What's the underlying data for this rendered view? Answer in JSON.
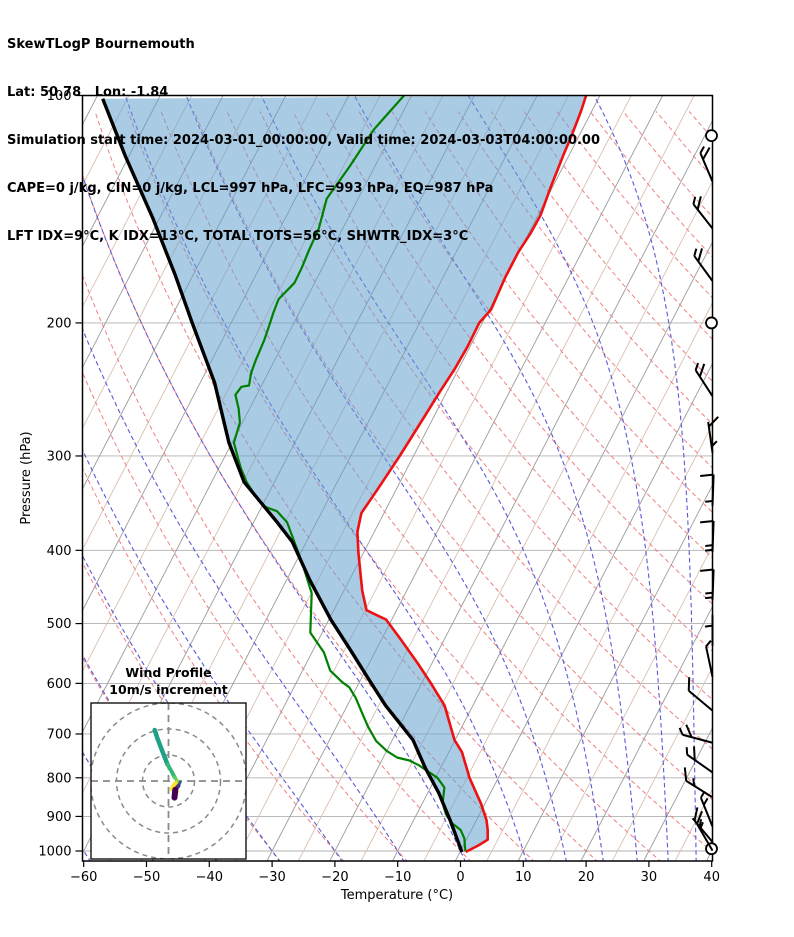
{
  "header": {
    "title": "SkewTLogP Bournemouth",
    "location": "Lat: 50.78   Lon: -1.84",
    "times": "Simulation start time: 2024-03-01_00:00:00, Valid time: 2024-03-03T04:00:00.00",
    "indices_line1": "CAPE=0 j/kg, CIN=0 j/kg, LCL=997 hPa, LFC=993 hPa, EQ=987 hPa",
    "indices_line2": "LFT IDX=9°C, K IDX=13°C, TOTAL TOTS=56°C, SHWTR_IDX=3°C"
  },
  "axes": {
    "x_label": "Temperature (°C)",
    "y_label": "Pressure (hPa)",
    "x_ticks": [
      -60,
      -50,
      -40,
      -30,
      -20,
      -10,
      0,
      10,
      20,
      30,
      40
    ],
    "y_ticks": [
      100,
      200,
      300,
      400,
      500,
      600,
      700,
      800,
      900,
      1000
    ],
    "x_range": [
      -60,
      40
    ],
    "pressure_range": [
      100,
      1030
    ]
  },
  "inset": {
    "title_line1": "Wind Profile",
    "title_line2": "10m/s increment",
    "rings_ms": [
      10,
      20,
      30
    ]
  },
  "colors": {
    "temperature": "#ee1111",
    "dewpoint": "#008000",
    "parcel": "#000000",
    "cape_fill": "rgba(100,160,205,0.55)",
    "isotherm_major": "#9b9b9b",
    "isotherm_minor": "#d9c0b2",
    "pressure_grid": "#b0b0b0",
    "dry_adiabat": "#ef8080",
    "moist_adiabat": "#5a5ad6",
    "barb": "#000000",
    "hodo_grid": "#8a8a8a"
  },
  "chart_data": {
    "type": "skewt_logp",
    "title": "SkewTLogP Bournemouth",
    "grid": {
      "isotherms_c": {
        "min": -160,
        "max": 40,
        "step": 5,
        "major_every": 10
      },
      "dry_adiabats_theta_c": {
        "min": -60,
        "max": 210,
        "step": 10
      },
      "moist_adiabat_starts_c": [
        -120,
        -110,
        -100,
        -90,
        -80,
        -70,
        -60,
        -50,
        -40,
        -30,
        -20,
        -10,
        0,
        10,
        16.5,
        22.5,
        28,
        33,
        37.5
      ]
    },
    "temperature_profile_pT": [
      [
        1003,
        0.9
      ],
      [
        983,
        2.4
      ],
      [
        966,
        3.4
      ],
      [
        938,
        2.6
      ],
      [
        910,
        1.6
      ],
      [
        866,
        -0.6
      ],
      [
        800,
        -4.6
      ],
      [
        740,
        -7.9
      ],
      [
        713,
        -10.1
      ],
      [
        642,
        -14.5
      ],
      [
        600,
        -18.5
      ],
      [
        564,
        -22.3
      ],
      [
        525,
        -26.9
      ],
      [
        494,
        -30.9
      ],
      [
        480,
        -34.8
      ],
      [
        452,
        -37.1
      ],
      [
        403,
        -40.8
      ],
      [
        378,
        -42.7
      ],
      [
        357,
        -43.6
      ],
      [
        333,
        -43.0
      ],
      [
        300,
        -42.2
      ],
      [
        266,
        -41.5
      ],
      [
        247,
        -41.1
      ],
      [
        230,
        -40.6
      ],
      [
        215,
        -40.4
      ],
      [
        200,
        -40.5
      ],
      [
        192,
        -39.7
      ],
      [
        174,
        -40.1
      ],
      [
        161,
        -40.1
      ],
      [
        152,
        -39.7
      ],
      [
        144,
        -39.6
      ],
      [
        132,
        -40.3
      ],
      [
        120,
        -40.9
      ],
      [
        113,
        -41.2
      ],
      [
        105,
        -41.7
      ],
      [
        100,
        -42.2
      ]
    ],
    "dewpoint_profile_pT": [
      [
        1001,
        0.8
      ],
      [
        985,
        0.3
      ],
      [
        963,
        -0.4
      ],
      [
        938,
        -1.7
      ],
      [
        917,
        -3.8
      ],
      [
        893,
        -5.4
      ],
      [
        864,
        -6.8
      ],
      [
        824,
        -7.8
      ],
      [
        800,
        -9.7
      ],
      [
        770,
        -13.7
      ],
      [
        759,
        -15.6
      ],
      [
        752,
        -17.8
      ],
      [
        737,
        -20.0
      ],
      [
        715,
        -22.5
      ],
      [
        684,
        -25.0
      ],
      [
        653,
        -27.3
      ],
      [
        627,
        -29.3
      ],
      [
        607,
        -31.2
      ],
      [
        598,
        -32.7
      ],
      [
        577,
        -35.6
      ],
      [
        546,
        -38.1
      ],
      [
        514,
        -41.9
      ],
      [
        456,
        -44.9
      ],
      [
        415,
        -49.0
      ],
      [
        367,
        -54.7
      ],
      [
        355,
        -57.2
      ],
      [
        350,
        -59.6
      ],
      [
        336,
        -62.4
      ],
      [
        325,
        -64.4
      ],
      [
        312,
        -66.4
      ],
      [
        304,
        -67.5
      ],
      [
        288,
        -69.7
      ],
      [
        271,
        -70.4
      ],
      [
        260,
        -71.7
      ],
      [
        249,
        -73.4
      ],
      [
        243,
        -73.1
      ],
      [
        242,
        -72.0
      ],
      [
        233,
        -72.7
      ],
      [
        224,
        -73.0
      ],
      [
        211,
        -73.3
      ],
      [
        202,
        -73.7
      ],
      [
        194,
        -74.1
      ],
      [
        186,
        -74.4
      ],
      [
        177,
        -73.2
      ],
      [
        169,
        -73.3
      ],
      [
        160,
        -73.6
      ],
      [
        150,
        -73.8
      ],
      [
        137,
        -75.0
      ],
      [
        124,
        -74.0
      ],
      [
        111,
        -73.2
      ],
      [
        100,
        -71.2
      ]
    ],
    "parcel_profile_pT": [
      [
        1003,
        0.3
      ],
      [
        910,
        -4.2
      ],
      [
        837,
        -8.3
      ],
      [
        777,
        -12.4
      ],
      [
        713,
        -16.7
      ],
      [
        642,
        -23.9
      ],
      [
        589,
        -29.1
      ],
      [
        539,
        -34.4
      ],
      [
        494,
        -39.7
      ],
      [
        438,
        -46.3
      ],
      [
        390,
        -52.2
      ],
      [
        367,
        -56.3
      ],
      [
        325,
        -64.8
      ],
      [
        288,
        -70.5
      ],
      [
        240,
        -77.7
      ],
      [
        200,
        -86.2
      ],
      [
        173,
        -92.8
      ],
      [
        145,
        -101.2
      ],
      [
        120,
        -110.7
      ],
      [
        101,
        -118.9
      ]
    ],
    "wind_barbs": [
      {
        "p": 113,
        "calm": true
      },
      {
        "p": 130,
        "angle": -23,
        "ticks": [
          [
            "h",
            0
          ],
          [
            "f",
            0.22
          ]
        ]
      },
      {
        "p": 150,
        "angle": -38,
        "ticks": [
          [
            "h",
            0
          ],
          [
            "f",
            0.22
          ]
        ]
      },
      {
        "p": 176,
        "angle": -36,
        "ticks": [
          [
            "h",
            0
          ],
          [
            "f",
            0.22
          ]
        ]
      },
      {
        "p": 200,
        "calm": true
      },
      {
        "p": 250,
        "angle": -33,
        "ticks": [
          [
            "h",
            0
          ],
          [
            "f",
            0.25
          ]
        ]
      },
      {
        "p": 297,
        "angle": -8,
        "ticks": [
          [
            "f",
            0.15
          ],
          [
            "h",
            0.8
          ]
        ]
      },
      {
        "p": 349,
        "angle": 2,
        "ticks": [
          [
            "f",
            0
          ],
          [
            "h",
            0.85
          ]
        ]
      },
      {
        "p": 402,
        "angle": 2,
        "ticks": [
          [
            "f",
            0
          ],
          [
            "h",
            0.78
          ],
          [
            "h",
            0.93
          ]
        ]
      },
      {
        "p": 466,
        "angle": 2,
        "ticks": [
          [
            "f",
            0
          ],
          [
            "h",
            0.75
          ],
          [
            "h",
            0.9
          ]
        ]
      },
      {
        "p": 535,
        "angle": 0,
        "ticks": [
          [
            "h",
            0.35
          ]
        ]
      },
      {
        "p": 588,
        "angle": -12,
        "ticks": [
          [
            "h",
            0
          ]
        ]
      },
      {
        "p": 652,
        "angle": -50,
        "ticks": [
          [
            "f",
            0
          ]
        ]
      },
      {
        "p": 719,
        "angle": -75,
        "ticks": [
          [
            "h",
            0
          ],
          [
            "f",
            0.3
          ]
        ]
      },
      {
        "p": 787,
        "angle": -55,
        "ticks": [
          [
            "h",
            0
          ],
          [
            "f",
            0.3
          ]
        ]
      },
      {
        "p": 849,
        "angle": -58,
        "ticks": [
          [
            "f",
            0
          ],
          [
            "h",
            0.3
          ]
        ]
      },
      {
        "p": 928,
        "angle": -22,
        "ticks": [
          [
            "h",
            0
          ],
          [
            "h",
            0.25
          ]
        ]
      },
      {
        "p": 973,
        "angle": -40,
        "ticks": [
          [
            "f",
            0.1
          ],
          [
            "h",
            0.35
          ]
        ]
      },
      {
        "p": 993,
        "calm": true
      },
      {
        "p": 999,
        "angle": -30,
        "ticks": [
          [
            "f",
            0
          ],
          [
            "h",
            0.2
          ]
        ]
      }
    ],
    "hodograph_trace_ms": [
      {
        "color": "#1fa187",
        "w": 4.5,
        "pts": [
          [
            -5.3,
            19.6
          ],
          [
            -4.2,
            16.2
          ],
          [
            -2.3,
            11.3
          ],
          [
            -0.4,
            6.4
          ]
        ]
      },
      {
        "color": "#35b779",
        "w": 4,
        "pts": [
          [
            -0.4,
            6.4
          ],
          [
            1.1,
            3.8
          ],
          [
            2.3,
            1.5
          ]
        ]
      },
      {
        "color": "#5ec962",
        "w": 3.5,
        "pts": [
          [
            2.3,
            1.5
          ],
          [
            3.4,
            0.0
          ]
        ]
      },
      {
        "color": "#9fda3a",
        "w": 3.5,
        "pts": [
          [
            3.4,
            0.0
          ],
          [
            2.6,
            -1.1
          ]
        ]
      },
      {
        "color": "#fde725",
        "w": 5,
        "pts": [
          [
            2.6,
            -1.1
          ],
          [
            1.5,
            -3.0
          ],
          [
            3.0,
            -4.2
          ]
        ]
      },
      {
        "color": "#365c8d",
        "w": 3,
        "pts": [
          [
            4.5,
            -0.4
          ],
          [
            3.8,
            -1.9
          ]
        ]
      },
      {
        "color": "#46327e",
        "w": 4,
        "pts": [
          [
            3.8,
            -1.9
          ],
          [
            2.6,
            -3.4
          ]
        ]
      },
      {
        "color": "#440154",
        "w": 6,
        "pts": [
          [
            2.6,
            -3.4
          ],
          [
            2.3,
            -6.4
          ]
        ]
      }
    ]
  }
}
